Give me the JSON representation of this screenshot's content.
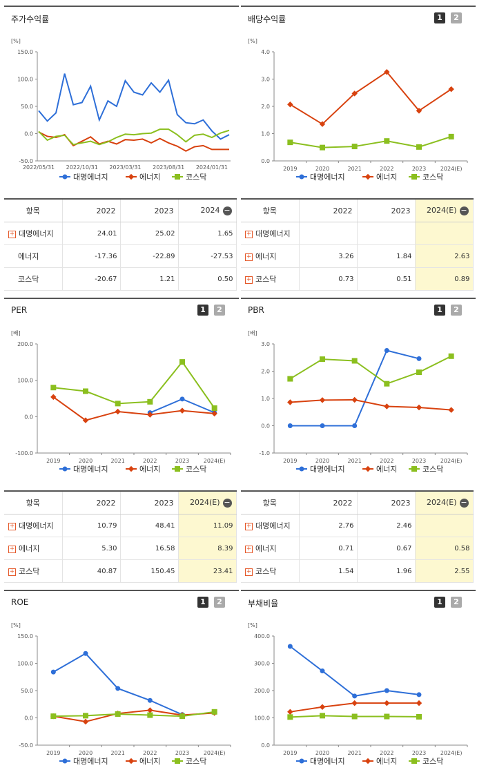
{
  "colors": {
    "series1": "#2e6fd8",
    "series2": "#d8420f",
    "series3": "#8bbf1f",
    "highlight": "#fdf8d0"
  },
  "series_names": [
    "대명에너지",
    "에너지",
    "코스닥"
  ],
  "pagination": {
    "page1": "1",
    "page2": "2"
  },
  "panels": {
    "stock_return": {
      "title": "주가수익률",
      "unit": "[%]"
    },
    "dividend_yield": {
      "title": "배당수익률",
      "unit": "[%]"
    },
    "per": {
      "title": "PER",
      "unit": "[배]"
    },
    "pbr": {
      "title": "PBR",
      "unit": "[배]"
    },
    "roe": {
      "title": "ROE",
      "unit": "[%]"
    },
    "debt_ratio": {
      "title": "부채비율",
      "unit": "[%]"
    }
  },
  "chart_data": [
    {
      "id": "stock_return",
      "type": "line",
      "x_labels": [
        "2022/05/31",
        "2022/10/31",
        "2023/03/31",
        "2023/08/31",
        "2024/01/31"
      ],
      "ylim": [
        -50,
        150
      ],
      "yticks": [
        "150.0",
        "100.0",
        "50.0",
        "0.0",
        "-50.0"
      ],
      "series": [
        {
          "name": "대명에너지",
          "values": [
            42,
            23,
            38,
            110,
            53,
            57,
            87,
            25,
            60,
            50,
            97,
            76,
            71,
            93,
            76,
            98,
            35,
            20,
            18,
            25,
            5,
            -10,
            -2
          ]
        },
        {
          "name": "에너지",
          "values": [
            3,
            -5,
            -7,
            -2,
            -22,
            -14,
            -6,
            -19,
            -14,
            -19,
            -11,
            -12,
            -10,
            -17,
            -9,
            -17,
            -23,
            -32,
            -24,
            -22,
            -29,
            -29,
            -29
          ]
        },
        {
          "name": "코스닥",
          "values": [
            4,
            -12,
            -5,
            -3,
            -20,
            -17,
            -14,
            -20,
            -15,
            -7,
            -1,
            -2,
            0,
            1,
            8,
            8,
            -2,
            -15,
            -3,
            -1,
            -7,
            1,
            6
          ]
        }
      ]
    },
    {
      "id": "dividend_yield",
      "type": "line",
      "categories": [
        "2019",
        "2020",
        "2021",
        "2022",
        "2023",
        "2024(E)"
      ],
      "ylim": [
        0,
        4
      ],
      "yticks": [
        "4.0",
        "3.0",
        "2.0",
        "1.0",
        "0.0"
      ],
      "series": [
        {
          "name": "에너지",
          "values": [
            2.07,
            1.35,
            2.47,
            3.26,
            1.84,
            2.63
          ]
        },
        {
          "name": "코스닥",
          "values": [
            0.68,
            0.49,
            0.53,
            0.73,
            0.51,
            0.89
          ]
        }
      ]
    },
    {
      "id": "per",
      "type": "line",
      "categories": [
        "2019",
        "2020",
        "2021",
        "2022",
        "2023",
        "2024(E)"
      ],
      "ylim": [
        -100,
        200
      ],
      "yticks": [
        "200.0",
        "100.0",
        "0.0",
        "-100.0"
      ],
      "series": [
        {
          "name": "대명에너지",
          "values": [
            null,
            null,
            null,
            10.79,
            48.41,
            11.09
          ]
        },
        {
          "name": "에너지",
          "values": [
            54,
            -10,
            14,
            5.3,
            16.58,
            8.39
          ]
        },
        {
          "name": "코스닥",
          "values": [
            80,
            70,
            36,
            40.87,
            150.45,
            23.41
          ]
        }
      ]
    },
    {
      "id": "pbr",
      "type": "line",
      "categories": [
        "2019",
        "2020",
        "2021",
        "2022",
        "2023",
        "2024(E)"
      ],
      "ylim": [
        -1,
        3
      ],
      "yticks": [
        "3.0",
        "2.0",
        "1.0",
        "0.0",
        "-1.0"
      ],
      "series": [
        {
          "name": "대명에너지",
          "values": [
            0,
            0,
            0,
            2.76,
            2.46,
            null
          ]
        },
        {
          "name": "에너지",
          "values": [
            0.86,
            0.94,
            0.95,
            0.71,
            0.67,
            0.58
          ]
        },
        {
          "name": "코스닥",
          "values": [
            1.72,
            2.44,
            2.38,
            1.54,
            1.96,
            2.55
          ]
        }
      ]
    },
    {
      "id": "roe",
      "type": "line",
      "categories": [
        "2019",
        "2020",
        "2021",
        "2022",
        "2023",
        "2024(E)"
      ],
      "ylim": [
        -50,
        150
      ],
      "yticks": [
        "150.0",
        "100.0",
        "50.0",
        "0.0",
        "-50.0"
      ],
      "series": [
        {
          "name": "대명에너지",
          "values": [
            84,
            118,
            54,
            32,
            6,
            null
          ]
        },
        {
          "name": "에너지",
          "values": [
            3,
            -7,
            8,
            14,
            5,
            9
          ]
        },
        {
          "name": "코스닥",
          "values": [
            3,
            4,
            7,
            5,
            3,
            11
          ]
        }
      ]
    },
    {
      "id": "debt_ratio",
      "type": "line",
      "categories": [
        "2019",
        "2020",
        "2021",
        "2022",
        "2023",
        "2024(E)"
      ],
      "ylim": [
        0,
        400
      ],
      "yticks": [
        "400.0",
        "300.0",
        "200.0",
        "100.0",
        "0.0"
      ],
      "series": [
        {
          "name": "대명에너지",
          "values": [
            362,
            272,
            180,
            200,
            185,
            null
          ]
        },
        {
          "name": "에너지",
          "values": [
            122,
            140,
            154,
            154,
            154,
            null
          ]
        },
        {
          "name": "코스닥",
          "values": [
            103,
            108,
            105,
            105,
            104,
            null
          ]
        }
      ]
    }
  ],
  "tables": {
    "stock_return": {
      "header": [
        "항목",
        "2022",
        "2023",
        "2024"
      ],
      "rows": [
        {
          "name": "대명에너지",
          "expandable": true,
          "values": [
            "24.01",
            "25.02",
            "1.65"
          ]
        },
        {
          "name": "에너지",
          "expandable": false,
          "values": [
            "-17.36",
            "-22.89",
            "-27.53"
          ]
        },
        {
          "name": "코스닥",
          "expandable": false,
          "values": [
            "-20.67",
            "1.21",
            "0.50"
          ]
        }
      ]
    },
    "dividend_yield": {
      "header": [
        "항목",
        "2022",
        "2023",
        "2024(E)"
      ],
      "rows": [
        {
          "name": "대명에너지",
          "expandable": true,
          "values": [
            "",
            "",
            ""
          ]
        },
        {
          "name": "에너지",
          "expandable": true,
          "values": [
            "3.26",
            "1.84",
            "2.63"
          ]
        },
        {
          "name": "코스닥",
          "expandable": true,
          "values": [
            "0.73",
            "0.51",
            "0.89"
          ]
        }
      ]
    },
    "per": {
      "header": [
        "항목",
        "2022",
        "2023",
        "2024(E)"
      ],
      "rows": [
        {
          "name": "대명에너지",
          "expandable": true,
          "values": [
            "10.79",
            "48.41",
            "11.09"
          ]
        },
        {
          "name": "에너지",
          "expandable": true,
          "values": [
            "5.30",
            "16.58",
            "8.39"
          ]
        },
        {
          "name": "코스닥",
          "expandable": true,
          "values": [
            "40.87",
            "150.45",
            "23.41"
          ]
        }
      ]
    },
    "pbr": {
      "header": [
        "항목",
        "2022",
        "2023",
        "2024(E)"
      ],
      "rows": [
        {
          "name": "대명에너지",
          "expandable": true,
          "values": [
            "2.76",
            "2.46",
            ""
          ]
        },
        {
          "name": "에너지",
          "expandable": true,
          "values": [
            "0.71",
            "0.67",
            "0.58"
          ]
        },
        {
          "name": "코스닥",
          "expandable": true,
          "values": [
            "1.54",
            "1.96",
            "2.55"
          ]
        }
      ]
    }
  }
}
